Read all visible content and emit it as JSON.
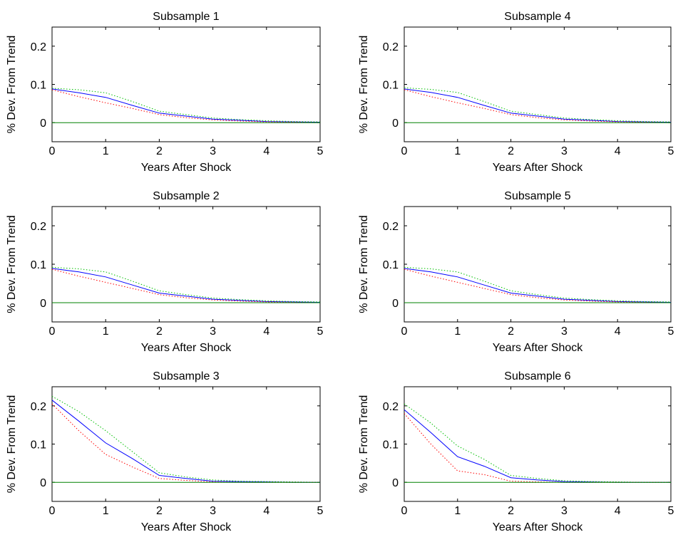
{
  "chart_data": [
    {
      "type": "line",
      "title": "Subsample 1",
      "xlabel": "Years After Shock",
      "ylabel": "% Dev. From Trend",
      "xlim": [
        0,
        5
      ],
      "ylim": [
        -0.05,
        0.25
      ],
      "xticks": [
        "0",
        "1",
        "2",
        "3",
        "4",
        "5"
      ],
      "yticks": [
        "0",
        "0.1",
        "0.2"
      ],
      "x": [
        0,
        0.5,
        1,
        1.5,
        2,
        2.5,
        3,
        3.5,
        4,
        4.5,
        5
      ],
      "series": [
        {
          "role": "estimate",
          "color": "#0000ff",
          "style": "solid",
          "values": [
            0.088,
            0.078,
            0.066,
            0.045,
            0.025,
            0.017,
            0.009,
            0.006,
            0.003,
            0.002,
            0.001
          ]
        },
        {
          "role": "upper band",
          "color": "#00bf00",
          "style": "dotted",
          "values": [
            0.09,
            0.086,
            0.078,
            0.055,
            0.03,
            0.021,
            0.012,
            0.008,
            0.005,
            0.003,
            0.002
          ]
        },
        {
          "role": "lower band",
          "color": "#ff0000",
          "style": "dotted",
          "values": [
            0.086,
            0.068,
            0.052,
            0.037,
            0.021,
            0.013,
            0.007,
            0.004,
            0.002,
            0.001,
            0.0
          ]
        },
        {
          "role": "zero line",
          "color": "#008000",
          "style": "solid",
          "values": [
            0,
            0,
            0,
            0,
            0,
            0,
            0,
            0,
            0,
            0,
            0
          ]
        }
      ]
    },
    {
      "type": "line",
      "title": "Subsample 2",
      "xlabel": "Years After Shock",
      "ylabel": "% Dev. From Trend",
      "xlim": [
        0,
        5
      ],
      "ylim": [
        -0.05,
        0.25
      ],
      "xticks": [
        "0",
        "1",
        "2",
        "3",
        "4",
        "5"
      ],
      "yticks": [
        "0",
        "0.1",
        "0.2"
      ],
      "x": [
        0,
        0.5,
        1,
        1.5,
        2,
        2.5,
        3,
        3.5,
        4,
        4.5,
        5
      ],
      "series": [
        {
          "role": "estimate",
          "color": "#0000ff",
          "style": "solid",
          "values": [
            0.089,
            0.08,
            0.067,
            0.046,
            0.025,
            0.017,
            0.009,
            0.006,
            0.003,
            0.002,
            0.001
          ]
        },
        {
          "role": "upper band",
          "color": "#00bf00",
          "style": "dotted",
          "values": [
            0.092,
            0.088,
            0.08,
            0.056,
            0.031,
            0.021,
            0.012,
            0.008,
            0.005,
            0.003,
            0.002
          ]
        },
        {
          "role": "lower band",
          "color": "#ff0000",
          "style": "dotted",
          "values": [
            0.087,
            0.069,
            0.053,
            0.037,
            0.021,
            0.013,
            0.007,
            0.004,
            0.002,
            0.001,
            0.0
          ]
        },
        {
          "role": "zero line",
          "color": "#008000",
          "style": "solid",
          "values": [
            0,
            0,
            0,
            0,
            0,
            0,
            0,
            0,
            0,
            0,
            0
          ]
        }
      ]
    },
    {
      "type": "line",
      "title": "Subsample 3",
      "xlabel": "Years After Shock",
      "ylabel": "% Dev. From Trend",
      "xlim": [
        0,
        5
      ],
      "ylim": [
        -0.05,
        0.25
      ],
      "xticks": [
        "0",
        "1",
        "2",
        "3",
        "4",
        "5"
      ],
      "yticks": [
        "0",
        "0.1",
        "0.2"
      ],
      "x": [
        0,
        0.5,
        1,
        1.5,
        2,
        2.5,
        3,
        3.5,
        4,
        4.5,
        5
      ],
      "series": [
        {
          "role": "estimate",
          "color": "#0000ff",
          "style": "solid",
          "values": [
            0.215,
            0.16,
            0.103,
            0.062,
            0.018,
            0.01,
            0.003,
            0.002,
            0.001,
            0.0,
            0.0
          ]
        },
        {
          "role": "upper band",
          "color": "#00bf00",
          "style": "dotted",
          "values": [
            0.225,
            0.185,
            0.135,
            0.08,
            0.025,
            0.014,
            0.006,
            0.003,
            0.002,
            0.001,
            0.0
          ]
        },
        {
          "role": "lower band",
          "color": "#ff0000",
          "style": "dotted",
          "values": [
            0.205,
            0.135,
            0.073,
            0.04,
            0.01,
            0.005,
            0.001,
            0.0,
            0.0,
            0.0,
            0.0
          ]
        },
        {
          "role": "zero line",
          "color": "#008000",
          "style": "solid",
          "values": [
            0,
            0,
            0,
            0,
            0,
            0,
            0,
            0,
            0,
            0,
            0
          ]
        }
      ]
    },
    {
      "type": "line",
      "title": "Subsample 4",
      "xlabel": "Years After Shock",
      "ylabel": "% Dev. From Trend",
      "xlim": [
        0,
        5
      ],
      "ylim": [
        -0.05,
        0.25
      ],
      "xticks": [
        "0",
        "1",
        "2",
        "3",
        "4",
        "5"
      ],
      "yticks": [
        "0",
        "0.1",
        "0.2"
      ],
      "x": [
        0,
        0.5,
        1,
        1.5,
        2,
        2.5,
        3,
        3.5,
        4,
        4.5,
        5
      ],
      "series": [
        {
          "role": "estimate",
          "color": "#0000ff",
          "style": "solid",
          "values": [
            0.088,
            0.079,
            0.066,
            0.045,
            0.025,
            0.017,
            0.009,
            0.006,
            0.003,
            0.002,
            0.001
          ]
        },
        {
          "role": "upper band",
          "color": "#00bf00",
          "style": "dotted",
          "values": [
            0.091,
            0.087,
            0.079,
            0.055,
            0.03,
            0.021,
            0.012,
            0.008,
            0.005,
            0.003,
            0.002
          ]
        },
        {
          "role": "lower band",
          "color": "#ff0000",
          "style": "dotted",
          "values": [
            0.086,
            0.068,
            0.052,
            0.037,
            0.021,
            0.013,
            0.007,
            0.004,
            0.002,
            0.001,
            0.0
          ]
        },
        {
          "role": "zero line",
          "color": "#008000",
          "style": "solid",
          "values": [
            0,
            0,
            0,
            0,
            0,
            0,
            0,
            0,
            0,
            0,
            0
          ]
        }
      ]
    },
    {
      "type": "line",
      "title": "Subsample 5",
      "xlabel": "Years After Shock",
      "ylabel": "% Dev. From Trend",
      "xlim": [
        0,
        5
      ],
      "ylim": [
        -0.05,
        0.25
      ],
      "xticks": [
        "0",
        "1",
        "2",
        "3",
        "4",
        "5"
      ],
      "yticks": [
        "0",
        "0.1",
        "0.2"
      ],
      "x": [
        0,
        0.5,
        1,
        1.5,
        2,
        2.5,
        3,
        3.5,
        4,
        4.5,
        5
      ],
      "series": [
        {
          "role": "estimate",
          "color": "#0000ff",
          "style": "solid",
          "values": [
            0.089,
            0.08,
            0.067,
            0.046,
            0.025,
            0.017,
            0.009,
            0.006,
            0.003,
            0.002,
            0.001
          ]
        },
        {
          "role": "upper band",
          "color": "#00bf00",
          "style": "dotted",
          "values": [
            0.092,
            0.088,
            0.08,
            0.056,
            0.031,
            0.021,
            0.012,
            0.008,
            0.005,
            0.003,
            0.002
          ]
        },
        {
          "role": "lower band",
          "color": "#ff0000",
          "style": "dotted",
          "values": [
            0.087,
            0.069,
            0.053,
            0.037,
            0.021,
            0.013,
            0.007,
            0.004,
            0.002,
            0.001,
            0.0
          ]
        },
        {
          "role": "zero line",
          "color": "#008000",
          "style": "solid",
          "values": [
            0,
            0,
            0,
            0,
            0,
            0,
            0,
            0,
            0,
            0,
            0
          ]
        }
      ]
    },
    {
      "type": "line",
      "title": "Subsample 6",
      "xlabel": "Years After Shock",
      "ylabel": "% Dev. From Trend",
      "xlim": [
        0,
        5
      ],
      "ylim": [
        -0.05,
        0.25
      ],
      "xticks": [
        "0",
        "1",
        "2",
        "3",
        "4",
        "5"
      ],
      "yticks": [
        "0",
        "0.1",
        "0.2"
      ],
      "x": [
        0,
        0.5,
        1,
        1.5,
        2,
        2.5,
        3,
        3.5,
        4,
        4.5,
        5
      ],
      "series": [
        {
          "role": "estimate",
          "color": "#0000ff",
          "style": "solid",
          "values": [
            0.19,
            0.13,
            0.067,
            0.042,
            0.012,
            0.006,
            0.002,
            0.001,
            0.0,
            0.0,
            0.0
          ]
        },
        {
          "role": "upper band",
          "color": "#00bf00",
          "style": "dotted",
          "values": [
            0.205,
            0.155,
            0.095,
            0.06,
            0.018,
            0.01,
            0.004,
            0.002,
            0.001,
            0.0,
            0.0
          ]
        },
        {
          "role": "lower band",
          "color": "#ff0000",
          "style": "dotted",
          "values": [
            0.18,
            0.1,
            0.03,
            0.02,
            0.003,
            0.001,
            0.0,
            0.0,
            0.0,
            0.0,
            0.0
          ]
        },
        {
          "role": "zero line",
          "color": "#008000",
          "style": "solid",
          "values": [
            0,
            0,
            0,
            0,
            0,
            0,
            0,
            0,
            0,
            0,
            0
          ]
        }
      ]
    }
  ]
}
